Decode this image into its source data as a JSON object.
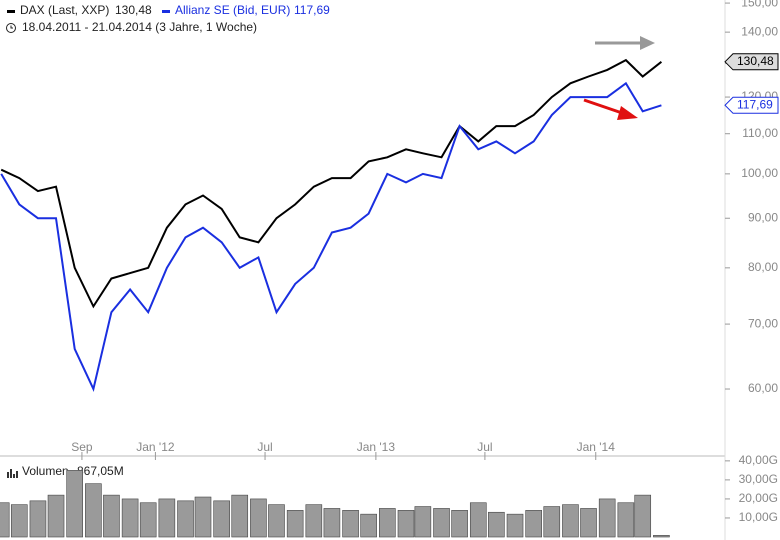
{
  "chart_data": [
    {
      "type": "line",
      "series": [
        {
          "name": "DAX (Last, XXP)",
          "last_label": "130,48",
          "color": "#000000",
          "values": [
            101,
            99,
            96,
            97,
            80,
            73,
            78,
            79,
            80,
            88,
            93,
            95,
            92,
            86,
            85,
            90,
            93,
            97,
            99,
            99,
            103,
            104,
            106,
            105,
            104,
            112,
            108,
            112,
            112,
            115,
            120,
            124,
            126,
            128,
            131,
            126,
            130.48
          ]
        },
        {
          "name": "Allianz SE (Bid, EUR)",
          "last_label": "117,69",
          "color": "#1a2fe0",
          "values": [
            100,
            93,
            90,
            90,
            66,
            60,
            72,
            76,
            72,
            80,
            86,
            88,
            85,
            80,
            82,
            72,
            77,
            80,
            87,
            88,
            91,
            100,
            98,
            100,
            99,
            112,
            106,
            108,
            105,
            108,
            115,
            120,
            120,
            120,
            124,
            116,
            117.69
          ]
        }
      ],
      "subtitle": "18.04.2011 - 21.04.2014 (3 Jahre, 1 Woche)",
      "x": [
        "2011-04",
        "2011-05",
        "2011-06",
        "2011-07",
        "2011-08",
        "2011-09",
        "2011-10",
        "2011-11",
        "2011-12",
        "2012-01",
        "2012-02",
        "2012-03",
        "2012-04",
        "2012-05",
        "2012-06",
        "2012-07",
        "2012-08",
        "2012-09",
        "2012-10",
        "2012-11",
        "2012-12",
        "2013-01",
        "2013-02",
        "2013-03",
        "2013-04",
        "2013-05",
        "2013-06",
        "2013-07",
        "2013-08",
        "2013-09",
        "2013-10",
        "2013-11",
        "2013-12",
        "2014-01",
        "2014-02",
        "2014-03",
        "2014-04"
      ],
      "xlim": [
        "2011-04-18",
        "2014-04-21"
      ],
      "xticks": [
        {
          "value": "2011-09",
          "label": "Sep"
        },
        {
          "value": "2012-01",
          "label": "Jan '12"
        },
        {
          "value": "2012-07",
          "label": "Jul"
        },
        {
          "value": "2013-01",
          "label": "Jan '13"
        },
        {
          "value": "2013-07",
          "label": "Jul"
        },
        {
          "value": "2014-01",
          "label": "Jan '14"
        }
      ],
      "ylim": [
        51.3,
        151.1
      ],
      "log_scale": true,
      "yticks": [
        {
          "value": 60,
          "label": "60,00"
        },
        {
          "value": 70,
          "label": "70,00"
        },
        {
          "value": 80,
          "label": "80,00"
        },
        {
          "value": 90,
          "label": "90,00"
        },
        {
          "value": 100,
          "label": "100,00"
        },
        {
          "value": 110,
          "label": "110,00"
        },
        {
          "value": 120,
          "label": "120,00"
        },
        {
          "value": 130,
          "label": "130,00"
        },
        {
          "value": 140,
          "label": "140,00"
        },
        {
          "value": 150,
          "label": "150,00"
        }
      ]
    },
    {
      "type": "bar",
      "series": [
        {
          "name": "Volumen",
          "last_label": "867,05M",
          "color": "#9a9a9a",
          "values": [
            18,
            17,
            19,
            22,
            35,
            28,
            22,
            20,
            18,
            20,
            19,
            21,
            19,
            22,
            20,
            17,
            14,
            17,
            15,
            14,
            12,
            15,
            14,
            16,
            15,
            14,
            18,
            13,
            12,
            14,
            16,
            17,
            15,
            20,
            18,
            22,
            0.86705
          ]
        }
      ],
      "ylim": [
        0,
        41.5
      ],
      "yticks": [
        {
          "value": 10,
          "label": "10,00G"
        },
        {
          "value": 20,
          "label": "20,00G"
        },
        {
          "value": 30,
          "label": "30,00G"
        },
        {
          "value": 40,
          "label": "40,00G"
        }
      ]
    }
  ]
}
